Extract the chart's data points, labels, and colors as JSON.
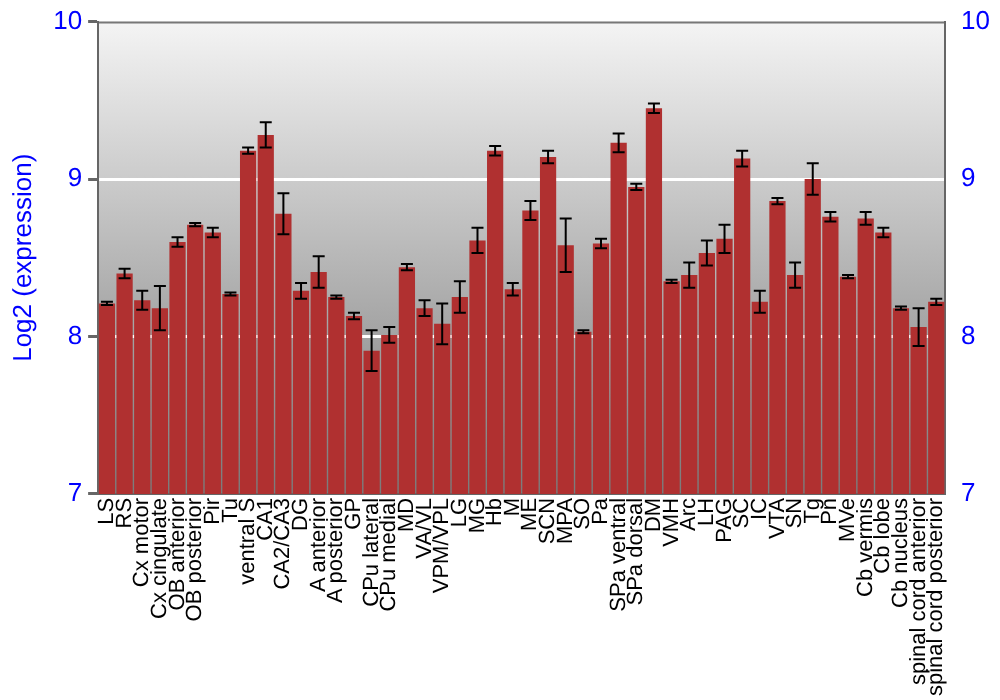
{
  "chart_data": {
    "type": "bar",
    "ylabel": "Log2 (expression)",
    "categories": [
      "LS",
      "RS",
      "Cx motor",
      "Cx cingulate",
      "OB anterior",
      "OB posterior",
      "Pir",
      "Tu",
      "ventral S",
      "CA1",
      "CA2/CA3",
      "DG",
      "A anterior",
      "A posterior",
      "GP",
      "CPu lateral",
      "CPu medial",
      "MD",
      "VA/VL",
      "VPM/VPL",
      "LG",
      "MG",
      "Hb",
      "M",
      "ME",
      "SCN",
      "MPA",
      "SO",
      "Pa",
      "SPa ventral",
      "SPa dorsal",
      "DM",
      "VMH",
      "Arc",
      "LH",
      "PAG",
      "SC",
      "IC",
      "VTA",
      "SN",
      "Tg",
      "Pn",
      "MVe",
      "Cb vermis",
      "Cb lobe",
      "Cb nucleus",
      "spinal cord anterior",
      "spinal cord posterior"
    ],
    "values": [
      8.21,
      8.4,
      8.23,
      8.18,
      8.6,
      8.71,
      8.66,
      8.27,
      9.18,
      9.28,
      8.78,
      8.29,
      8.41,
      8.25,
      8.13,
      7.91,
      8.01,
      8.44,
      8.18,
      8.08,
      8.25,
      8.61,
      9.18,
      8.3,
      8.8,
      9.14,
      8.58,
      8.03,
      8.59,
      9.23,
      8.95,
      9.45,
      8.35,
      8.39,
      8.53,
      8.62,
      9.13,
      8.22,
      8.86,
      8.39,
      9.0,
      8.76,
      8.38,
      8.75,
      8.66,
      8.18,
      8.06,
      8.22
    ],
    "errors": [
      0.01,
      0.03,
      0.06,
      0.14,
      0.03,
      0.01,
      0.03,
      0.01,
      0.02,
      0.08,
      0.13,
      0.05,
      0.1,
      0.01,
      0.02,
      0.13,
      0.05,
      0.02,
      0.05,
      0.13,
      0.1,
      0.08,
      0.03,
      0.04,
      0.06,
      0.04,
      0.17,
      0.01,
      0.03,
      0.06,
      0.02,
      0.03,
      0.01,
      0.08,
      0.08,
      0.09,
      0.05,
      0.07,
      0.02,
      0.08,
      0.1,
      0.03,
      0.01,
      0.04,
      0.03,
      0.01,
      0.12,
      0.02
    ],
    "color": "#b03030",
    "ylim": [
      7,
      10
    ],
    "yticks": [
      7,
      8,
      9,
      10
    ],
    "y2lim": [
      7,
      10
    ],
    "y2ticks": [
      7,
      8,
      9,
      10
    ],
    "grid": "y",
    "legend": false
  }
}
